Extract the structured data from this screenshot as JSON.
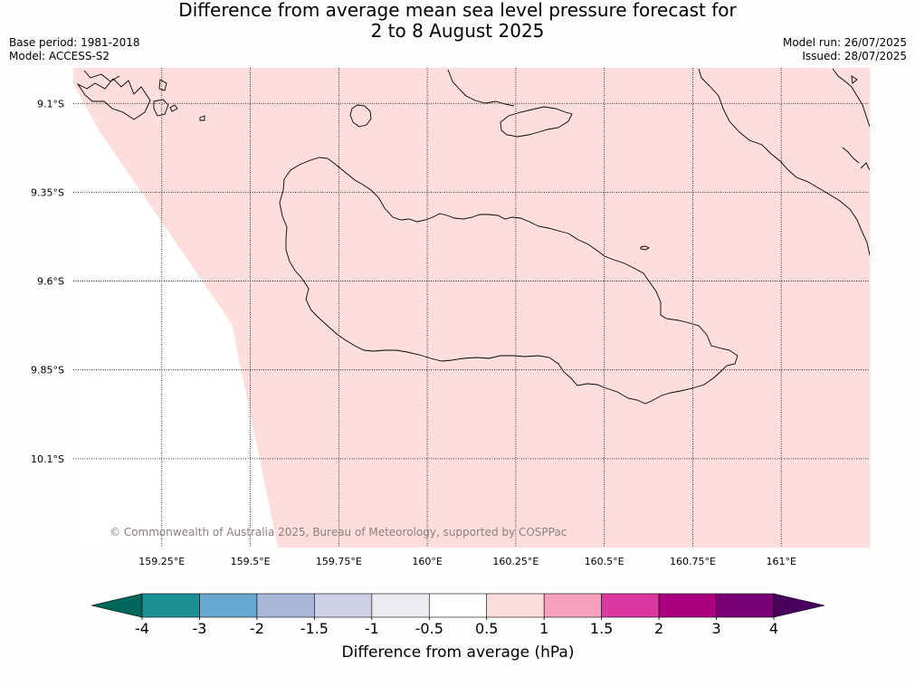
{
  "title": {
    "line1": "Difference from average mean sea level pressure forecast for",
    "line2": "2 to 8 August 2025"
  },
  "meta_left": {
    "base_period": "Base period: 1981-2018",
    "model": "Model: ACCESS-S2"
  },
  "meta_right": {
    "model_run": "Model run: 26/07/2025",
    "issued": "Issued: 28/07/2025"
  },
  "map": {
    "lat_labels": [
      "9.1°S",
      "9.35°S",
      "9.6°S",
      "9.85°S",
      "10.1°S"
    ],
    "lon_labels": [
      "159.25°E",
      "159.5°E",
      "159.75°E",
      "160°E",
      "160.25°E",
      "160.5°E",
      "160.75°E",
      "161°E"
    ],
    "lat_values": [
      -9.1,
      -9.35,
      -9.6,
      -9.85,
      -10.1
    ],
    "lon_values": [
      159.25,
      159.5,
      159.75,
      160.0,
      160.25,
      160.5,
      160.75,
      161.0
    ],
    "extent": {
      "lon_min": 159.0,
      "lon_max": 161.25,
      "lat_min": -10.35,
      "lat_max": -9.0
    },
    "fill_colors": {
      "band_0_5_to_1": "#fddedd",
      "band_minus0_5_to_0_5": "#ffffff"
    },
    "copyright": "© Commonwealth of Australia 2025, Bureau of Meteorology, supported by COSPPac"
  },
  "colorbar": {
    "label": "Difference from average (hPa)",
    "ticks": [
      "-4",
      "-3",
      "-2",
      "-1.5",
      "-1",
      "-0.5",
      "0.5",
      "1",
      "1.5",
      "2",
      "3",
      "4"
    ],
    "colors": [
      "#1a8f94",
      "#66a8cf",
      "#a8b8d8",
      "#cfd0e5",
      "#eeeaf1",
      "#ffffff",
      "#fddedd",
      "#f8a0bd",
      "#dc36a0",
      "#aa0080",
      "#7a0077"
    ],
    "under_color": "#00675c",
    "over_color": "#48005c"
  }
}
